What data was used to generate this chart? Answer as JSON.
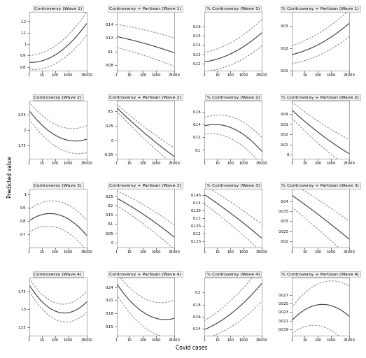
{
  "titles": [
    [
      "Controversy (Wave 1)",
      "Controversy + Partisan (Wave 1)",
      "% Controversy (Wave 1)",
      "% Controversy + Partisan (Wave 1)"
    ],
    [
      "Controversy (Wave 2)",
      "Controversy + Partisan (Wave 2)",
      "% Controversy (Wave 2)",
      "% Controversy + Partisan (Wave 2)"
    ],
    [
      "Controversy (Wave 3)",
      "Controversy + Partisan (Wave 3)",
      "% Controversy (Wave 3)",
      "% Controversy + Partisan (Wave 3)"
    ],
    [
      "Controversy (Wave 4)",
      "Controversy + Partisan (Wave 4)",
      "% Controversy (Wave 4)",
      "% Controversy + Partisan (Wave 4)"
    ]
  ],
  "xlabel": "Covid cases",
  "ylabel": "Predicted value",
  "bg": "#ffffff",
  "lc": "#444444",
  "cc": "#888888",
  "panels": [
    [
      {
        "ylim": [
          0.77,
          1.28
        ],
        "yticks": [
          0.8,
          0.9,
          1.0,
          1.1,
          1.2
        ],
        "p0": 0.84,
        "p1": 0.83,
        "p2": 1.18,
        "ci0_lo": 0.06,
        "ci0_hi": 0.06,
        "ci1_lo": 0.1,
        "ci1_hi": 0.1
      },
      {
        "ylim": [
          0.072,
          0.158
        ],
        "yticks": [
          0.08,
          0.1,
          0.12,
          0.14
        ],
        "p0": 0.122,
        "p1": 0.113,
        "p2": 0.098,
        "ci0_lo": 0.016,
        "ci0_hi": 0.018,
        "ci1_lo": 0.02,
        "ci1_hi": 0.022
      },
      {
        "ylim": [
          0.113,
          0.175
        ],
        "yticks": [
          0.12,
          0.13,
          0.14,
          0.15,
          0.16
        ],
        "p0": 0.122,
        "p1": 0.126,
        "p2": 0.153,
        "ci0_lo": 0.01,
        "ci0_hi": 0.01,
        "ci1_lo": 0.014,
        "ci1_hi": 0.014
      },
      {
        "ylim": [
          0.012,
          0.036
        ],
        "yticks": [
          0.01,
          0.02,
          0.03
        ],
        "p0": 0.017,
        "p1": 0.02,
        "p2": 0.031,
        "ci0_lo": 0.004,
        "ci0_hi": 0.004,
        "ci1_lo": 0.006,
        "ci1_hi": 0.006
      }
    ],
    [
      {
        "ylim": [
          1.53,
          2.48
        ],
        "yticks": [
          1.75,
          2.0,
          2.25
        ],
        "p0": 2.32,
        "p1": 1.7,
        "p2": 1.85,
        "ci0_lo": 0.14,
        "ci0_hi": 0.14,
        "ci1_lo": 0.22,
        "ci1_hi": 0.22
      },
      {
        "ylim": [
          -0.32,
          0.68
        ],
        "yticks": [
          -0.25,
          0.0,
          0.25,
          0.5
        ],
        "p0": 0.56,
        "p1": 0.08,
        "p2": -0.28,
        "ci0_lo": 0.06,
        "ci0_hi": 0.06,
        "ci1_lo": 0.15,
        "ci1_hi": 0.15
      },
      {
        "ylim": [
          0.086,
          0.178
        ],
        "yticks": [
          0.1,
          0.12,
          0.14,
          0.16
        ],
        "p0": 0.138,
        "p1": 0.15,
        "p2": 0.098,
        "ci0_lo": 0.013,
        "ci0_hi": 0.013,
        "ci1_lo": 0.022,
        "ci1_hi": 0.022
      },
      {
        "ylim": [
          -0.004,
          0.053
        ],
        "yticks": [
          0.0,
          0.01,
          0.02,
          0.03,
          0.04
        ],
        "p0": 0.044,
        "p1": 0.018,
        "p2": 0.001,
        "ci0_lo": 0.008,
        "ci0_hi": 0.008,
        "ci1_lo": 0.014,
        "ci1_hi": 0.014
      }
    ],
    [
      {
        "ylim": [
          0.6,
          1.04
        ],
        "yticks": [
          0.7,
          0.8,
          0.9,
          1.0
        ],
        "p0": 0.8,
        "p1": 0.95,
        "p2": 0.69,
        "ci0_lo": 0.085,
        "ci0_hi": 0.085,
        "ci1_lo": 0.115,
        "ci1_hi": 0.115
      },
      {
        "ylim": [
          -0.025,
          0.288
        ],
        "yticks": [
          0.0,
          0.05,
          0.1,
          0.15,
          0.2,
          0.25
        ],
        "p0": 0.24,
        "p1": 0.155,
        "p2": 0.03,
        "ci0_lo": 0.04,
        "ci0_hi": 0.04,
        "ci1_lo": 0.065,
        "ci1_hi": 0.065
      },
      {
        "ylim": [
          0.111,
          0.149
        ],
        "yticks": [
          0.115,
          0.12,
          0.125,
          0.13,
          0.135,
          0.14,
          0.145
        ],
        "p0": 0.1455,
        "p1": 0.133,
        "p2": 0.117,
        "ci0_lo": 0.006,
        "ci0_hi": 0.006,
        "ci1_lo": 0.009,
        "ci1_hi": 0.009
      },
      {
        "ylim": [
          0.017,
          0.046
        ],
        "yticks": [
          0.02,
          0.025,
          0.03,
          0.035,
          0.04
        ],
        "p0": 0.043,
        "p1": 0.033,
        "p2": 0.021,
        "ci0_lo": 0.006,
        "ci0_hi": 0.006,
        "ci1_lo": 0.009,
        "ci1_hi": 0.009
      }
    ],
    [
      {
        "ylim": [
          1.13,
          1.94
        ],
        "yticks": [
          1.25,
          1.5,
          1.75
        ],
        "p0": 1.84,
        "p1": 1.2,
        "p2": 1.6,
        "ci0_lo": 0.09,
        "ci0_hi": 0.09,
        "ci1_lo": 0.145,
        "ci1_hi": 0.145
      },
      {
        "ylim": [
          0.128,
          0.262
        ],
        "yticks": [
          0.15,
          0.18,
          0.21,
          0.24
        ],
        "p0": 0.248,
        "p1": 0.15,
        "p2": 0.168,
        "ci0_lo": 0.025,
        "ci0_hi": 0.025,
        "ci1_lo": 0.042,
        "ci1_hi": 0.042
      },
      {
        "ylim": [
          0.128,
          0.225
        ],
        "yticks": [
          0.14,
          0.16,
          0.18,
          0.2
        ],
        "p0": 0.138,
        "p1": 0.158,
        "p2": 0.215,
        "ci0_lo": 0.015,
        "ci0_hi": 0.015,
        "ci1_lo": 0.03,
        "ci1_hi": 0.03
      },
      {
        "ylim": [
          0.0175,
          0.031
        ],
        "yticks": [
          0.019,
          0.021,
          0.023,
          0.025,
          0.027
        ],
        "p0": 0.021,
        "p1": 0.028,
        "p2": 0.022,
        "ci0_lo": 0.003,
        "ci0_hi": 0.003,
        "ci1_lo": 0.007,
        "ci1_hi": 0.007
      }
    ]
  ]
}
